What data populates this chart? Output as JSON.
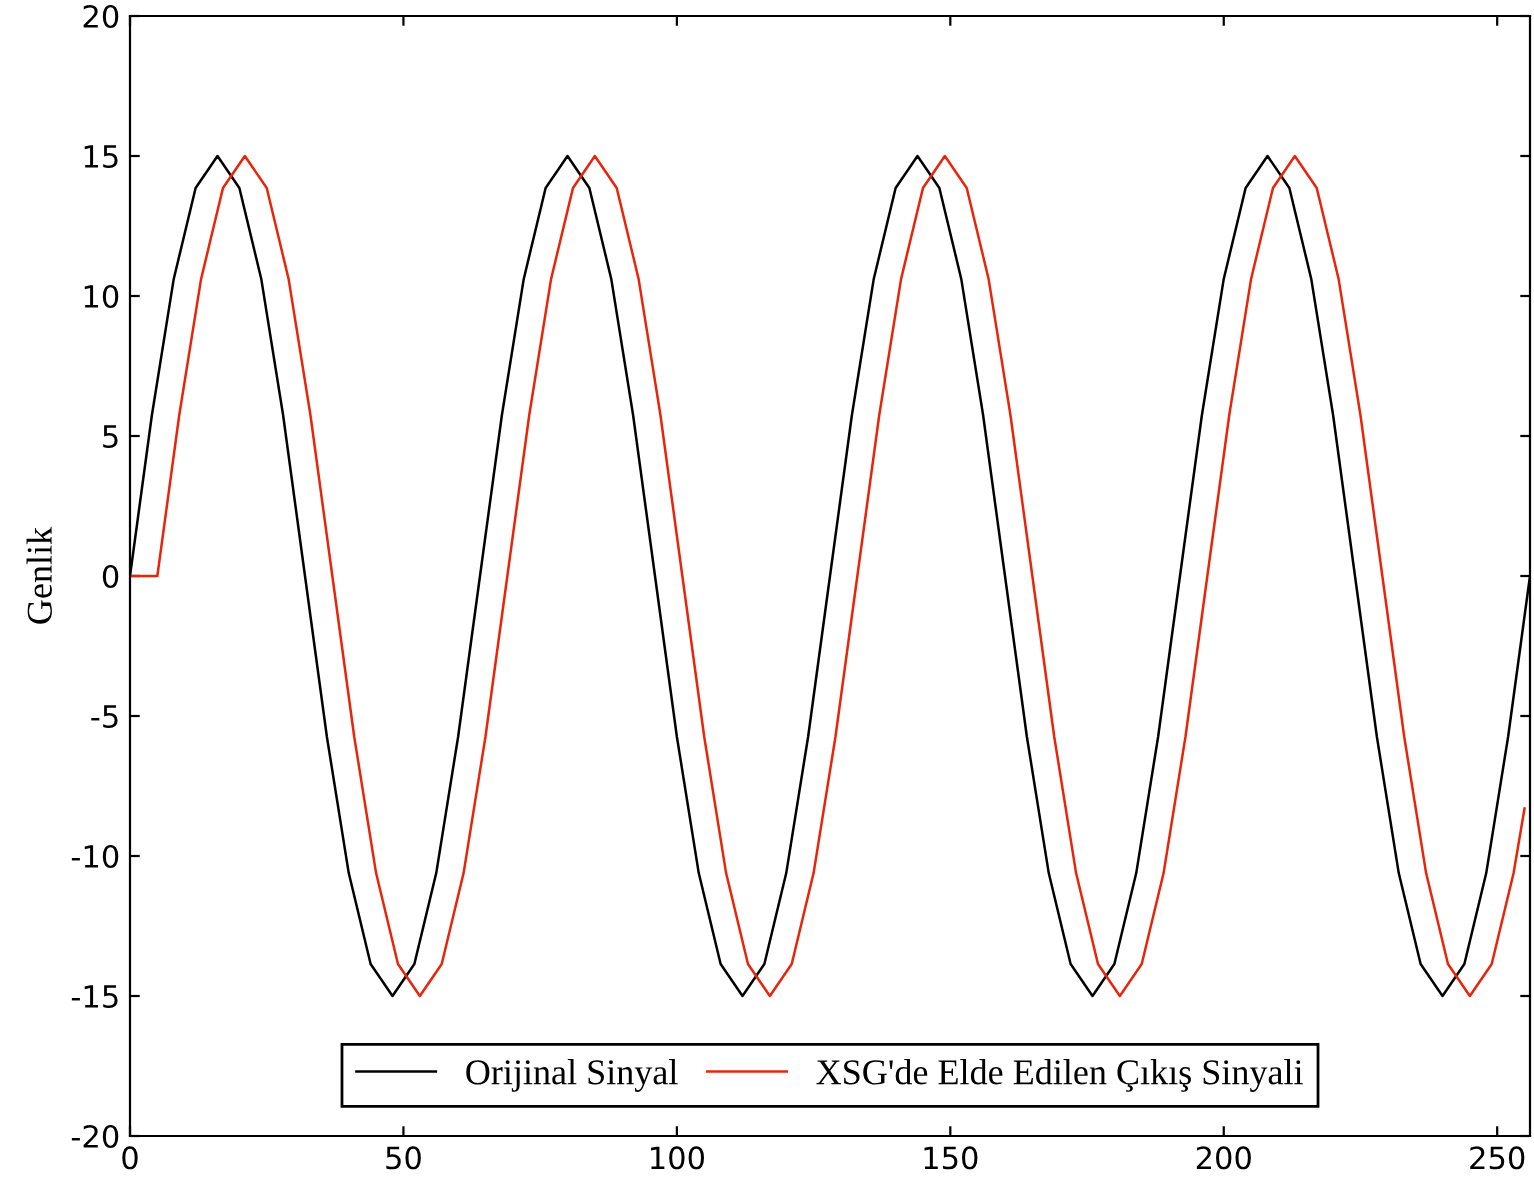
{
  "chart_data": {
    "type": "line",
    "ylabel": "Genlik",
    "xlim": [
      0,
      256
    ],
    "ylim": [
      -20,
      20
    ],
    "xticks": [
      0,
      50,
      100,
      150,
      200,
      250
    ],
    "yticks": [
      -20,
      -15,
      -10,
      -5,
      0,
      5,
      10,
      15,
      20
    ],
    "grid": false,
    "legend": "bottom",
    "marker": "none",
    "line_style": "solid",
    "series": [
      {
        "name": "Orijinal Sinyal",
        "color": "#000000",
        "x": [
          0,
          4,
          8,
          12,
          16,
          20,
          24,
          28,
          32,
          36,
          40,
          44,
          48,
          52,
          56,
          60,
          64,
          68,
          72,
          76,
          80,
          84,
          88,
          92,
          96,
          100,
          104,
          108,
          112,
          116,
          120,
          124,
          128,
          132,
          136,
          140,
          144,
          148,
          152,
          156,
          160,
          164,
          168,
          172,
          176,
          180,
          184,
          188,
          192,
          196,
          200,
          204,
          208,
          212,
          216,
          220,
          224,
          228,
          232,
          236,
          240,
          244,
          248,
          252,
          256
        ],
        "values": [
          0,
          5.74,
          10.61,
          13.86,
          15,
          13.86,
          10.61,
          5.74,
          0,
          -5.74,
          -10.61,
          -13.86,
          -15,
          -13.86,
          -10.61,
          -5.74,
          0,
          5.74,
          10.61,
          13.86,
          15,
          13.86,
          10.61,
          5.74,
          0,
          -5.74,
          -10.61,
          -13.86,
          -15,
          -13.86,
          -10.61,
          -5.74,
          0,
          5.74,
          10.61,
          13.86,
          15,
          13.86,
          10.61,
          5.74,
          0,
          -5.74,
          -10.61,
          -13.86,
          -15,
          -13.86,
          -10.61,
          -5.74,
          0,
          5.74,
          10.61,
          13.86,
          15,
          13.86,
          10.61,
          5.74,
          0,
          -5.74,
          -10.61,
          -13.86,
          -15,
          -13.86,
          -10.61,
          -5.74,
          0
        ]
      },
      {
        "name": "XSG'de Elde Edilen Çıkış Sinyali",
        "color": "#e8250a",
        "x": [
          0,
          3,
          5,
          9,
          13,
          17,
          21,
          25,
          29,
          33,
          37,
          41,
          45,
          49,
          53,
          57,
          61,
          65,
          69,
          73,
          77,
          81,
          85,
          89,
          93,
          97,
          101,
          105,
          109,
          113,
          117,
          121,
          125,
          129,
          133,
          137,
          141,
          145,
          149,
          153,
          157,
          161,
          165,
          169,
          173,
          177,
          181,
          185,
          189,
          193,
          197,
          201,
          205,
          209,
          213,
          217,
          221,
          225,
          229,
          233,
          237,
          241,
          245,
          249,
          253,
          255
        ],
        "values": [
          0,
          0,
          0,
          5.74,
          10.61,
          13.86,
          15,
          13.86,
          10.61,
          5.74,
          0,
          -5.74,
          -10.61,
          -13.86,
          -15,
          -13.86,
          -10.61,
          -5.74,
          0,
          5.74,
          10.61,
          13.86,
          15,
          13.86,
          10.61,
          5.74,
          0,
          -5.74,
          -10.61,
          -13.86,
          -15,
          -13.86,
          -10.61,
          -5.74,
          0,
          5.74,
          10.61,
          13.86,
          15,
          13.86,
          10.61,
          5.74,
          0,
          -5.74,
          -10.61,
          -13.86,
          -15,
          -13.86,
          -10.61,
          -5.74,
          0,
          5.74,
          10.61,
          13.86,
          15,
          13.86,
          10.61,
          5.74,
          0,
          -5.74,
          -10.61,
          -13.86,
          -15,
          -13.86,
          -10.61,
          -8.3
        ]
      }
    ]
  }
}
